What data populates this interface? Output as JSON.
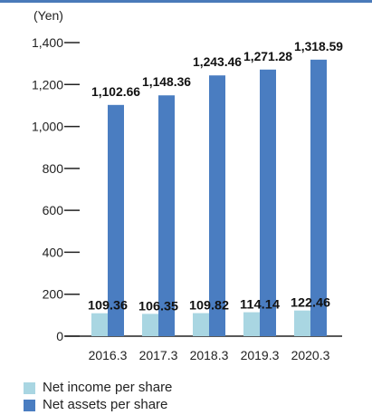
{
  "chart_data": {
    "type": "bar",
    "unit_label": "(Yen)",
    "categories": [
      "2016.3",
      "2017.3",
      "2018.3",
      "2019.3",
      "2020.3"
    ],
    "series": [
      {
        "name": "Net income per share",
        "values": [
          109.36,
          106.35,
          109.82,
          114.14,
          122.46
        ],
        "labels": [
          "109.36",
          "106.35",
          "109.82",
          "114.14",
          "122.46"
        ]
      },
      {
        "name": "Net assets per share",
        "values": [
          1102.66,
          1148.36,
          1243.46,
          1271.28,
          1318.59
        ],
        "labels": [
          "1,102.66",
          "1,148.36",
          "1,243.46",
          "1,271.28",
          "1,318.59"
        ]
      }
    ],
    "yticks": [
      0,
      200,
      400,
      600,
      800,
      1000,
      1200,
      1400
    ],
    "ytick_labels": [
      "0",
      "200",
      "400",
      "600",
      "800",
      "1,000",
      "1,200",
      "1,400"
    ],
    "ylim": [
      0,
      1400
    ],
    "grid": false,
    "legend_position": "bottom-left"
  },
  "colors": {
    "top_rule": "#4a7ab9",
    "net_income": "#a9d6e2",
    "net_assets": "#4a7dc1",
    "axis": "#222222"
  }
}
